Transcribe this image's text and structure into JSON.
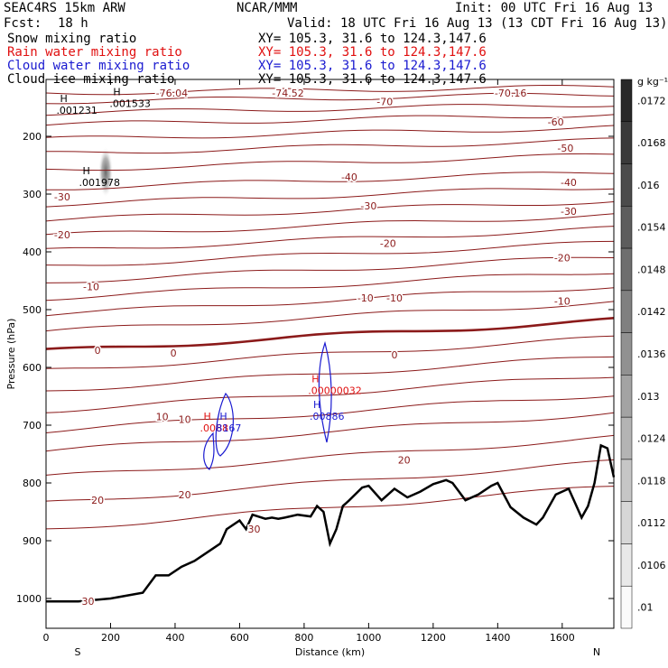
{
  "header": {
    "model": "SEAC4RS 15km ARW",
    "org": "NCAR/MMM",
    "init": "Init: 00 UTC Fri 16 Aug 13",
    "fcst_label": "Fcst:",
    "fcst_value": "18 h",
    "valid": "Valid: 18 UTC Fri 16 Aug 13 (13 CDT Fri 16 Aug 13)",
    "fields": [
      {
        "name": "Snow mixing ratio",
        "xy": "XY= 105.3, 31.6 to 124.3,147.6",
        "color": "#000000"
      },
      {
        "name": "Rain water mixing ratio",
        "xy": "XY= 105.3, 31.6 to 124.3,147.6",
        "color": "#e01010"
      },
      {
        "name": "Cloud water mixing ratio",
        "xy": "XY= 105.3, 31.6 to 124.3,147.6",
        "color": "#1a1ad0"
      },
      {
        "name": "Cloud ice mixing ratio",
        "xy": "XY= 105.3, 31.6 to 124.3,147.6",
        "color": "#000000"
      }
    ]
  },
  "chart_data": {
    "type": "contour-cross-section",
    "xlabel": "Distance (km)",
    "ylabel": "Pressure (hPa)",
    "xlim": [
      0,
      1760
    ],
    "ylim": [
      1050,
      110
    ],
    "x_ticks": [
      0,
      200,
      400,
      600,
      800,
      1000,
      1200,
      1400,
      1600
    ],
    "y_ticks": [
      200,
      300,
      400,
      500,
      600,
      700,
      800,
      900,
      1000
    ],
    "x_end_labels": {
      "left": "S",
      "right": "N"
    },
    "temperature_contour_labels": [
      {
        "text": "-76.04",
        "x": 390,
        "p": 125
      },
      {
        "text": "-74.52",
        "x": 750,
        "p": 125
      },
      {
        "text": "-70.16",
        "x": 1440,
        "p": 125
      },
      {
        "text": "-70",
        "x": 1050,
        "p": 140
      },
      {
        "text": "-60",
        "x": 1580,
        "p": 175
      },
      {
        "text": "-50",
        "x": 1610,
        "p": 220
      },
      {
        "text": "-40",
        "x": 940,
        "p": 270
      },
      {
        "text": "-40",
        "x": 1620,
        "p": 280
      },
      {
        "text": "-30",
        "x": 50,
        "p": 305
      },
      {
        "text": "-30",
        "x": 1000,
        "p": 320
      },
      {
        "text": "-30",
        "x": 1620,
        "p": 330
      },
      {
        "text": "-20",
        "x": 50,
        "p": 370
      },
      {
        "text": "-20",
        "x": 1060,
        "p": 385
      },
      {
        "text": "-20",
        "x": 1600,
        "p": 410
      },
      {
        "text": "-10",
        "x": 140,
        "p": 460
      },
      {
        "text": "-10",
        "x": 990,
        "p": 480
      },
      {
        "text": "-10",
        "x": 1080,
        "p": 480
      },
      {
        "text": "-10",
        "x": 1600,
        "p": 485
      },
      {
        "text": "0",
        "x": 160,
        "p": 570
      },
      {
        "text": "0",
        "x": 395,
        "p": 575
      },
      {
        "text": "0",
        "x": 1080,
        "p": 578
      },
      {
        "text": "10",
        "x": 360,
        "p": 685
      },
      {
        "text": "10",
        "x": 430,
        "p": 690
      },
      {
        "text": "20",
        "x": 1110,
        "p": 760
      },
      {
        "text": "20",
        "x": 160,
        "p": 830
      },
      {
        "text": "20",
        "x": 430,
        "p": 820
      },
      {
        "text": "30",
        "x": 645,
        "p": 880
      },
      {
        "text": "30",
        "x": 130,
        "p": 1005
      }
    ],
    "maxima_labels": [
      {
        "marker": "H",
        "value": ".001231",
        "x": 60,
        "p": 150,
        "field": "cloud_ice"
      },
      {
        "marker": "H",
        "value": ".001533",
        "x": 225,
        "p": 138,
        "field": "cloud_ice"
      },
      {
        "marker": "H",
        "value": ".001978",
        "x": 130,
        "p": 275,
        "field": "snow"
      },
      {
        "marker": "H",
        "value": ".00000032",
        "x": 840,
        "p": 635,
        "field": "rain"
      },
      {
        "marker": "H",
        "value": ".00886",
        "x": 845,
        "p": 680,
        "field": "cloud_water"
      },
      {
        "marker": "H",
        "value": ".0088",
        "x": 505,
        "p": 700,
        "field": "rain"
      },
      {
        "marker": "H",
        "value": "8167",
        "x": 555,
        "p": 700,
        "field": "cloud_water"
      }
    ],
    "terrain_profile": {
      "x": [
        0,
        100,
        200,
        300,
        340,
        380,
        420,
        460,
        500,
        540,
        560,
        600,
        620,
        640,
        680,
        700,
        720,
        740,
        780,
        820,
        840,
        860,
        880,
        900,
        920,
        940,
        980,
        1000,
        1040,
        1080,
        1120,
        1160,
        1200,
        1240,
        1260,
        1300,
        1340,
        1380,
        1400,
        1440,
        1480,
        1520,
        1540,
        1580,
        1620,
        1660,
        1680,
        1700,
        1720,
        1740,
        1760
      ],
      "p": [
        1005,
        1005,
        1000,
        990,
        960,
        960,
        945,
        935,
        920,
        905,
        880,
        865,
        880,
        855,
        862,
        860,
        862,
        860,
        855,
        858,
        840,
        850,
        905,
        880,
        840,
        830,
        808,
        805,
        830,
        810,
        825,
        815,
        802,
        795,
        800,
        830,
        820,
        805,
        800,
        842,
        860,
        872,
        860,
        820,
        810,
        860,
        840,
        800,
        735,
        740,
        790
      ]
    },
    "colorbar": {
      "unit": "g kg⁻¹",
      "labels": [
        ".0172",
        ".0168",
        ".016",
        ".0154",
        ".0148",
        ".0142",
        ".0136",
        ".013",
        ".0124",
        ".0118",
        ".0112",
        ".0106",
        ".01"
      ]
    },
    "grid": false
  }
}
